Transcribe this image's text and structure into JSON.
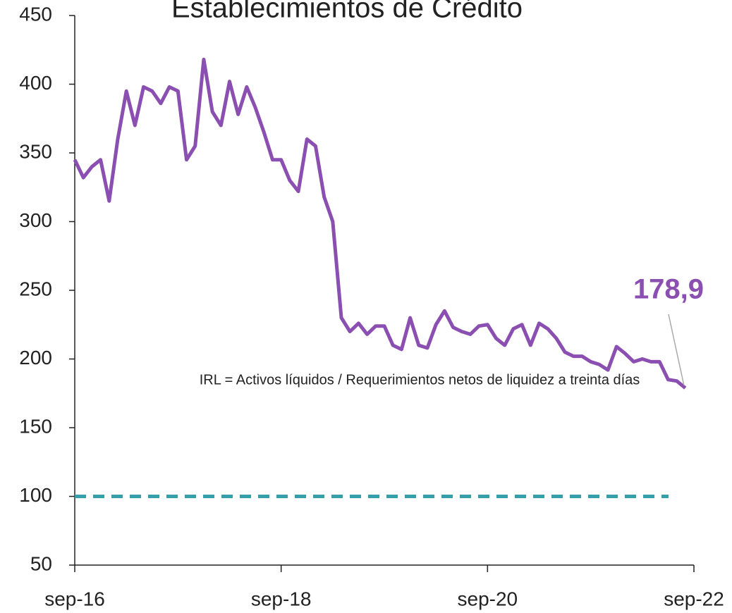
{
  "chart_data": {
    "type": "line",
    "title": "Establecimientos de Crédito",
    "note": "IRL = Activos líquidos / Requerimientos netos de liquidez a treinta días",
    "categories": [
      "sep-16",
      null,
      null,
      null,
      null,
      null,
      null,
      null,
      null,
      null,
      null,
      null,
      null,
      null,
      null,
      null,
      null,
      null,
      null,
      null,
      null,
      null,
      null,
      null,
      "sep-18",
      null,
      null,
      null,
      null,
      null,
      null,
      null,
      null,
      null,
      null,
      null,
      null,
      null,
      null,
      null,
      null,
      null,
      null,
      null,
      null,
      null,
      null,
      null,
      "sep-20",
      null,
      null,
      null,
      null,
      null,
      null,
      null,
      null,
      null,
      null,
      null,
      null,
      null,
      null,
      null,
      null,
      null,
      null,
      null,
      null,
      null,
      null,
      null,
      "sep-22"
    ],
    "series": [
      {
        "name": "IRL",
        "color": "#8a4fb0",
        "values": [
          345,
          332,
          340,
          345,
          315,
          360,
          395,
          370,
          398,
          395,
          386,
          398,
          395,
          345,
          355,
          418,
          380,
          370,
          402,
          378,
          398,
          383,
          365,
          345,
          345,
          330,
          322,
          360,
          355,
          318,
          300,
          230,
          220,
          226,
          218,
          224,
          224,
          210,
          207,
          230,
          210,
          208,
          225,
          235,
          223,
          220,
          218,
          224,
          225,
          215,
          210,
          222,
          225,
          210,
          226,
          222,
          215,
          205,
          202,
          202,
          198,
          196,
          192,
          209,
          204,
          198,
          200,
          198,
          198,
          185,
          184,
          178.9,
          null
        ],
        "value_labels": [
          null,
          null,
          null,
          null,
          null,
          null,
          null,
          null,
          null,
          null,
          null,
          null,
          null,
          null,
          null,
          null,
          null,
          null,
          null,
          null,
          null,
          null,
          null,
          null,
          null,
          null,
          null,
          null,
          null,
          null,
          null,
          null,
          null,
          null,
          null,
          null,
          null,
          null,
          null,
          null,
          null,
          null,
          null,
          null,
          null,
          null,
          null,
          null,
          null,
          null,
          null,
          null,
          null,
          null,
          null,
          null,
          null,
          null,
          null,
          null,
          null,
          null,
          null,
          null,
          null,
          null,
          null,
          null,
          null,
          null,
          null,
          "178,9",
          null
        ]
      }
    ],
    "reference_line": {
      "value": 100,
      "color": "#35a0aa"
    },
    "ylim": [
      50,
      450
    ],
    "yticks": [
      50,
      100,
      150,
      200,
      250,
      300,
      350,
      400,
      450
    ],
    "grid": false
  }
}
